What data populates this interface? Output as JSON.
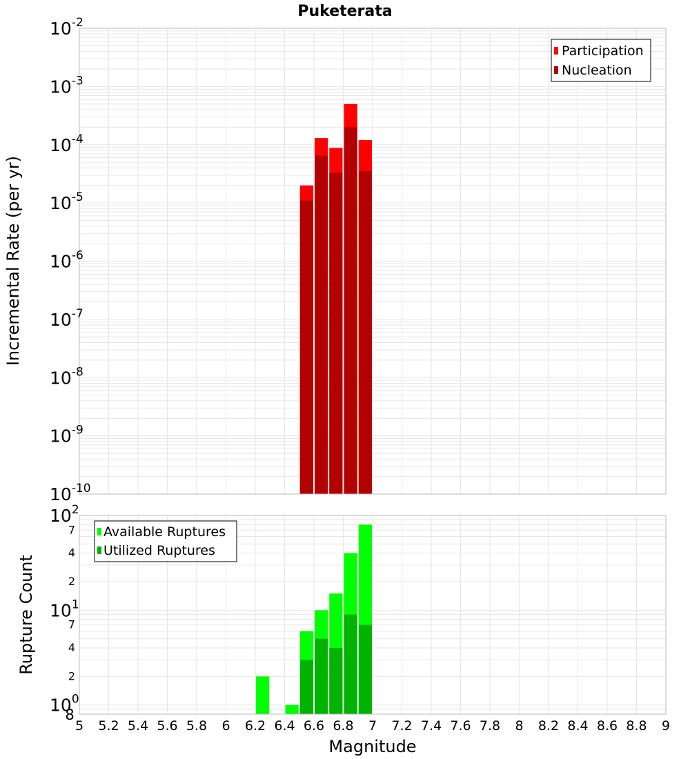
{
  "colors": {
    "background": "#ffffff",
    "plot_border": "#bbbbbb",
    "grid": "#e6e6e6",
    "participation": "#ff0000",
    "nucleation": "#b30000",
    "available": "#00ff00",
    "utilized": "#00b300",
    "text": "#000000"
  },
  "chart_data": [
    {
      "type": "bar",
      "title": "Puketerata",
      "ylabel": "Incremental Rate (per yr)",
      "xlabel": "",
      "y_scale": "log",
      "ylim": [
        1e-10,
        0.01
      ],
      "xlim": [
        5,
        9
      ],
      "y_ticks": [
        {
          "base": "10",
          "exp": "-10"
        },
        {
          "base": "10",
          "exp": "-9"
        },
        {
          "base": "10",
          "exp": "-8"
        },
        {
          "base": "10",
          "exp": "-7"
        },
        {
          "base": "10",
          "exp": "-6"
        },
        {
          "base": "10",
          "exp": "-5"
        },
        {
          "base": "10",
          "exp": "-4"
        },
        {
          "base": "10",
          "exp": "-3"
        },
        {
          "base": "10",
          "exp": "-2"
        }
      ],
      "legend": {
        "position": "top-right",
        "entries": [
          {
            "label": "Participation",
            "color": "#ff0000"
          },
          {
            "label": "Nucleation",
            "color": "#b30000"
          }
        ]
      },
      "series": [
        {
          "name": "Participation",
          "color": "#ff0000",
          "x": [
            6.55,
            6.65,
            6.75,
            6.85,
            6.95
          ],
          "values": [
            2e-05,
            0.00013,
            8.8e-05,
            0.0005,
            0.00012
          ]
        },
        {
          "name": "Nucleation",
          "color": "#b30000",
          "x": [
            6.55,
            6.65,
            6.75,
            6.85,
            6.95
          ],
          "values": [
            1.1e-05,
            6.5e-05,
            3.3e-05,
            0.0002,
            3.5e-05
          ]
        }
      ]
    },
    {
      "type": "bar",
      "title": "",
      "ylabel": "Rupture Count",
      "xlabel": "Magnitude",
      "y_scale": "log",
      "ylim": [
        0.8,
        100
      ],
      "xlim": [
        5,
        9
      ],
      "x_ticks": [
        "5",
        "5.2",
        "5.4",
        "5.6",
        "5.8",
        "6",
        "6.2",
        "6.4",
        "6.6",
        "6.8",
        "7",
        "7.2",
        "7.4",
        "7.6",
        "7.8",
        "8",
        "8.2",
        "8.4",
        "8.6",
        "8.8",
        "9"
      ],
      "y_ticks": [
        {
          "value": 0.8,
          "label": "8",
          "sup": ""
        },
        {
          "value": 1,
          "label": "10",
          "sup": "0"
        },
        {
          "value": 2,
          "label": "2",
          "sup": ""
        },
        {
          "value": 4,
          "label": "4",
          "sup": ""
        },
        {
          "value": 7,
          "label": "7",
          "sup": ""
        },
        {
          "value": 10,
          "label": "10",
          "sup": "1"
        },
        {
          "value": 20,
          "label": "2",
          "sup": ""
        },
        {
          "value": 40,
          "label": "4",
          "sup": ""
        },
        {
          "value": 70,
          "label": "7",
          "sup": ""
        },
        {
          "value": 100,
          "label": "10",
          "sup": "2"
        }
      ],
      "legend": {
        "position": "top-left",
        "entries": [
          {
            "label": "Available Ruptures",
            "color": "#00ff00"
          },
          {
            "label": "Utilized Ruptures",
            "color": "#00b300"
          }
        ]
      },
      "series": [
        {
          "name": "Available Ruptures",
          "color": "#00ff00",
          "x": [
            6.25,
            6.45,
            6.55,
            6.65,
            6.75,
            6.85,
            6.95
          ],
          "values": [
            2,
            1,
            6,
            10,
            15,
            40,
            80
          ]
        },
        {
          "name": "Utilized Ruptures",
          "color": "#00b300",
          "x": [
            6.55,
            6.65,
            6.75,
            6.85,
            6.95
          ],
          "values": [
            3,
            5,
            4,
            9,
            7
          ]
        }
      ]
    }
  ]
}
